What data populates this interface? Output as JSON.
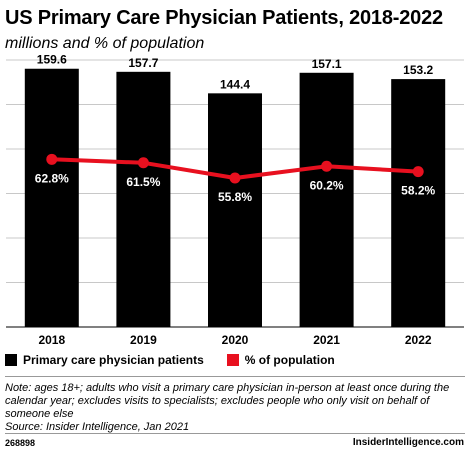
{
  "header": {
    "title": "US Primary Care Physician Patients, 2018-2022",
    "subtitle": "millions and % of population"
  },
  "chart_data": {
    "type": "bar",
    "categories": [
      "2018",
      "2019",
      "2020",
      "2021",
      "2022"
    ],
    "series": [
      {
        "name": "Primary care physician patients",
        "type": "bar",
        "values": [
          159.6,
          157.7,
          144.4,
          157.1,
          153.2
        ],
        "labels": [
          "159.6",
          "157.7",
          "144.4",
          "157.1",
          "153.2"
        ],
        "color": "#000000"
      },
      {
        "name": "% of population",
        "type": "line",
        "values": [
          62.8,
          61.5,
          55.8,
          60.2,
          58.2
        ],
        "labels": [
          "62.8%",
          "61.5%",
          "55.8%",
          "60.2%",
          "58.2%"
        ],
        "color": "#e8101f"
      }
    ],
    "ylim": [
      0,
      165
    ],
    "y2lim": [
      0,
      100
    ],
    "grid": true,
    "legend_placement": "bottom-left"
  },
  "legend": {
    "bar_label": "Primary care physician patients",
    "line_label": "% of population"
  },
  "note": {
    "text": "Note: ages 18+; adults who visit a primary care physician in-person at least once during the calendar year; excludes visits to specialists; excludes people who only visit on behalf of someone else",
    "source": "Source: Insider Intelligence, Jan 2021"
  },
  "footer": {
    "id": "268898",
    "brand": "InsiderIntelligence.com"
  },
  "colors": {
    "accent": "#e8101f",
    "bar": "#000000",
    "grid": "#c8c8c8"
  }
}
